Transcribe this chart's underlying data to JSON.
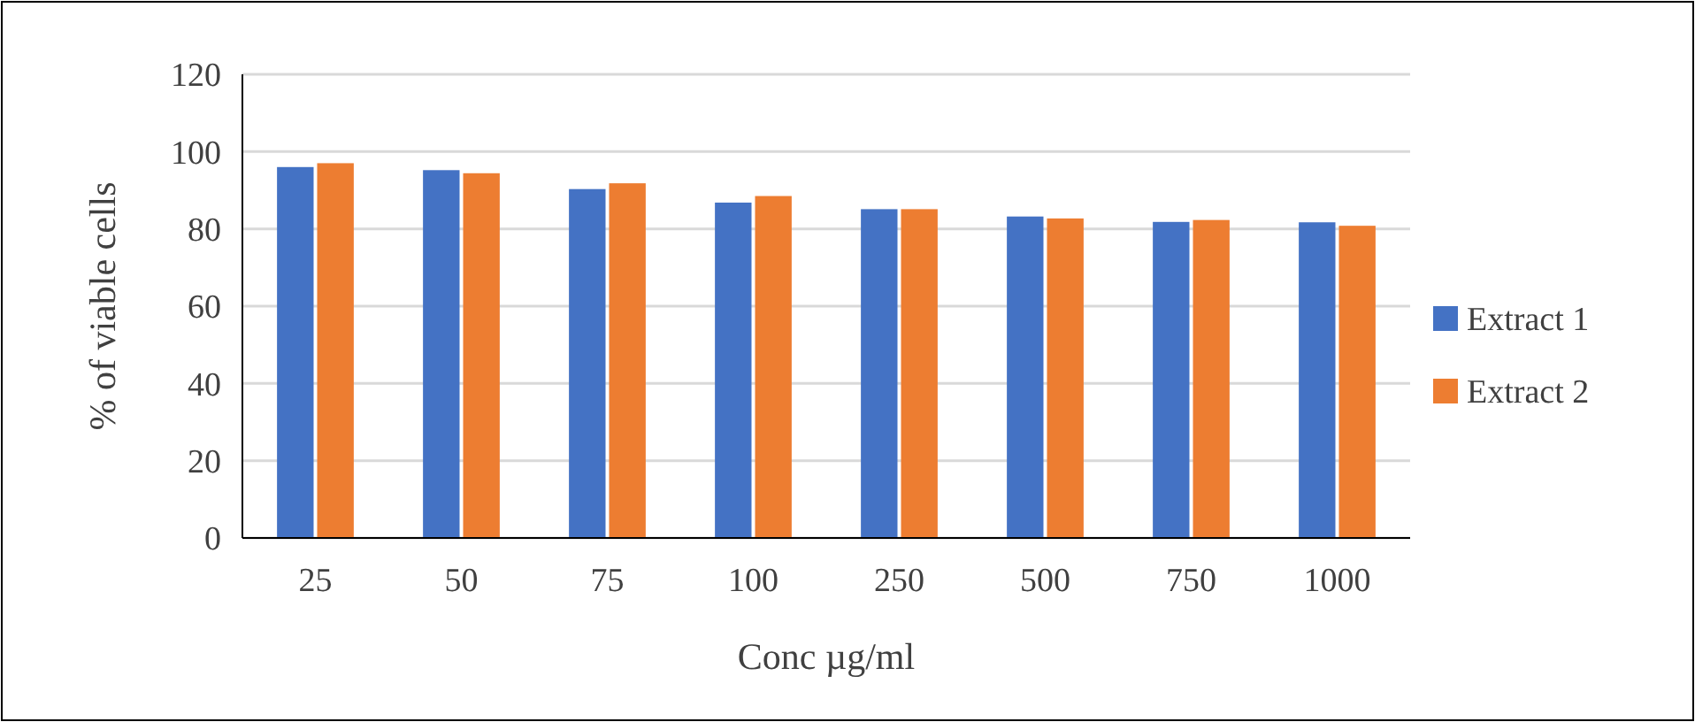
{
  "chart_data": {
    "type": "bar",
    "xlabel": "Conc µg/ml",
    "ylabel": "% of viable cells",
    "categories": [
      "25",
      "50",
      "75",
      "100",
      "250",
      "500",
      "750",
      "1000"
    ],
    "series": [
      {
        "name": "Extract 1",
        "color": "#4472c4",
        "values": [
          96,
          95.2,
          90.3,
          86.8,
          85.1,
          83.2,
          81.8,
          81.7
        ]
      },
      {
        "name": "Extract 2",
        "color": "#ed7d31",
        "values": [
          97,
          94.4,
          91.8,
          88.5,
          85.1,
          82.7,
          82.3,
          80.8
        ]
      }
    ],
    "ylim": [
      0,
      120
    ],
    "yticks": [
      0,
      20,
      40,
      60,
      80,
      100,
      120
    ],
    "grid": "y",
    "legend": "right"
  }
}
